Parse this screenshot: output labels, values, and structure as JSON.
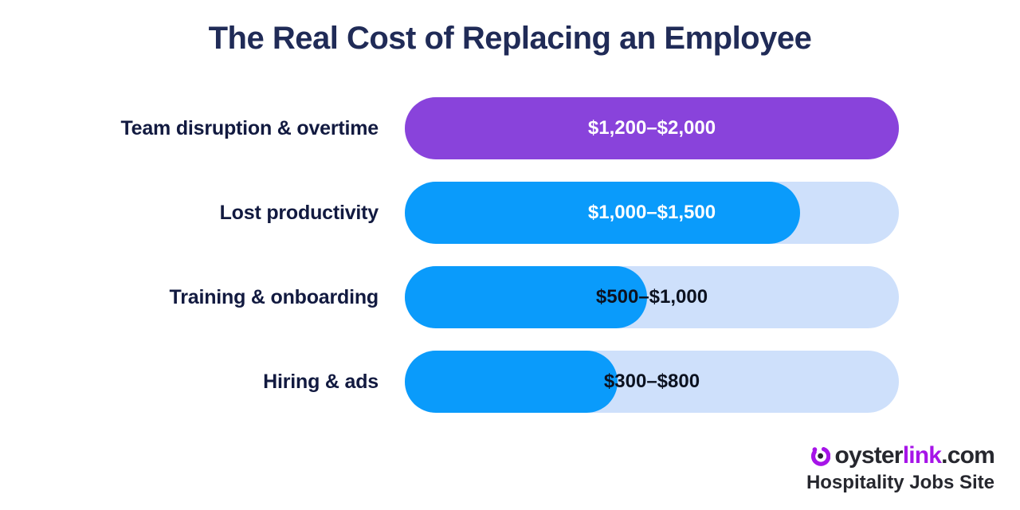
{
  "title": "The Real Cost of Replacing an Employee",
  "colors": {
    "title_navy": "#202b57",
    "label_navy": "#121a40",
    "bar_purple": "#8943db",
    "bar_blue": "#0a9bfb",
    "track_light_blue": "#cee0fb",
    "value_white": "#ffffff",
    "value_dark": "#0c1220",
    "logo_charcoal": "#26272e",
    "logo_purple": "#a614e8"
  },
  "chart_data": {
    "type": "bar",
    "orientation": "horizontal",
    "title": "The Real Cost of Replacing an Employee",
    "unit": "USD",
    "axis_max_value": 2000,
    "grid": false,
    "legend": false,
    "categories": [
      "Team disruption & overtime",
      "Lost productivity",
      "Training & onboarding",
      "Hiring & ads"
    ],
    "rows": [
      {
        "label": "Team disruption & overtime",
        "value_label": "$1,200–$2,000",
        "min_value": 1200,
        "max_value": 2000,
        "fill_pct": 100,
        "fill_color": "#8943db",
        "value_color": "#ffffff"
      },
      {
        "label": "Lost productivity",
        "value_label": "$1,000–$1,500",
        "min_value": 1000,
        "max_value": 1500,
        "fill_pct": 80,
        "fill_color": "#0a9bfb",
        "value_color": "#ffffff"
      },
      {
        "label": "Training & onboarding",
        "value_label": "$500–$1,000",
        "min_value": 500,
        "max_value": 1000,
        "fill_pct": 49,
        "fill_color": "#0a9bfb",
        "value_color": "#0c1220"
      },
      {
        "label": "Hiring & ads",
        "value_label": "$300–$800",
        "min_value": 300,
        "max_value": 800,
        "fill_pct": 43,
        "fill_color": "#0a9bfb",
        "value_color": "#0c1220"
      }
    ]
  },
  "footer": {
    "logo_prefix": "oyster",
    "logo_accent": "link",
    "logo_suffix": ".com",
    "tagline": "Hospitality Jobs Site"
  }
}
